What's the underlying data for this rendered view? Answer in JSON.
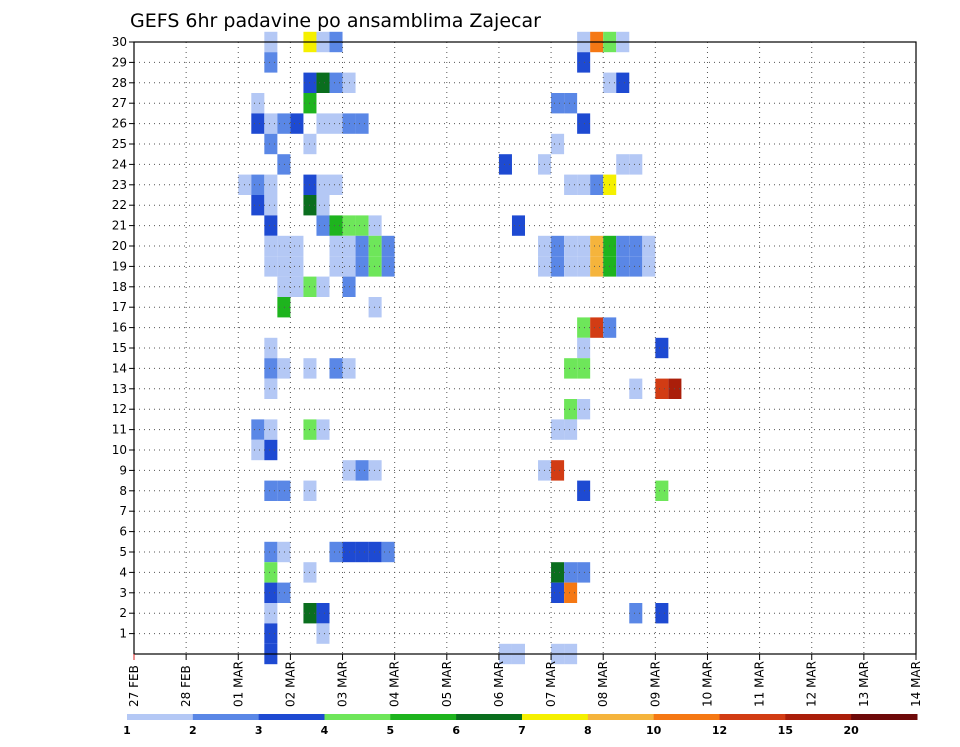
{
  "chart_data": {
    "type": "heatmap",
    "title": "GEFS 6hr padavine po ansamblima Zajecar",
    "xlabel": "",
    "ylabel": "",
    "x_unit": "days from 27 FEB 00Z",
    "xlim": [
      0,
      15
    ],
    "ylim": [
      0,
      30
    ],
    "y_ticks": [
      "1",
      "2",
      "3",
      "4",
      "5",
      "6",
      "7",
      "8",
      "9",
      "10",
      "11",
      "12",
      "13",
      "14",
      "15",
      "16",
      "17",
      "18",
      "19",
      "20",
      "21",
      "22",
      "23",
      "24",
      "25",
      "26",
      "27",
      "28",
      "29",
      "30"
    ],
    "x_ticks": [
      "27 FEB",
      "28 FEB",
      "01 MAR",
      "02 MAR",
      "03 MAR",
      "04 MAR",
      "05 MAR",
      "06 MAR",
      "07 MAR",
      "08 MAR",
      "09 MAR",
      "10 MAR",
      "11 MAR",
      "12 MAR",
      "13 MAR",
      "14 MAR"
    ],
    "legend": {
      "labels": [
        "1",
        "2",
        "3",
        "4",
        "5",
        "6",
        "7",
        "8",
        "10",
        "12",
        "15",
        "20"
      ],
      "colors": [
        "#b4c8f5",
        "#5a87e6",
        "#1e4ad2",
        "#6ee65a",
        "#1eb41e",
        "#0a6e1e",
        "#f5f000",
        "#f5b43c",
        "#f57814",
        "#d23c14",
        "#aa1e0a",
        "#6e0a0a"
      ]
    },
    "series": [
      {
        "member": 30,
        "cells": [
          [
            2,
            0
          ],
          [
            5,
            6
          ],
          [
            6,
            0
          ],
          [
            7,
            1
          ],
          [
            26,
            0
          ],
          [
            27,
            8
          ],
          [
            28,
            3
          ],
          [
            29,
            0
          ]
        ]
      },
      {
        "member": 29,
        "cells": [
          [
            2,
            1
          ],
          [
            26,
            2
          ]
        ]
      },
      {
        "member": 28,
        "cells": [
          [
            5,
            2
          ],
          [
            6,
            5
          ],
          [
            7,
            1
          ],
          [
            8,
            0
          ],
          [
            28,
            0
          ],
          [
            29,
            2
          ]
        ]
      },
      {
        "member": 27,
        "cells": [
          [
            1,
            0
          ],
          [
            5,
            4
          ],
          [
            24,
            1
          ],
          [
            25,
            1
          ]
        ]
      },
      {
        "member": 26,
        "cells": [
          [
            1,
            2
          ],
          [
            2,
            0
          ],
          [
            3,
            1
          ],
          [
            4,
            2
          ],
          [
            6,
            0
          ],
          [
            7,
            0
          ],
          [
            8,
            1
          ],
          [
            9,
            1
          ],
          [
            26,
            2
          ]
        ]
      },
      {
        "member": 25,
        "cells": [
          [
            2,
            1
          ],
          [
            5,
            0
          ],
          [
            24,
            0
          ]
        ]
      },
      {
        "member": 24,
        "cells": [
          [
            3,
            1
          ],
          [
            20,
            2
          ],
          [
            23,
            0
          ],
          [
            29,
            0
          ],
          [
            30,
            0
          ]
        ]
      },
      {
        "member": 23,
        "cells": [
          [
            0,
            0
          ],
          [
            1,
            1
          ],
          [
            2,
            0
          ],
          [
            5,
            2
          ],
          [
            6,
            0
          ],
          [
            7,
            0
          ],
          [
            25,
            0
          ],
          [
            26,
            0
          ],
          [
            27,
            1
          ],
          [
            28,
            6
          ]
        ]
      },
      {
        "member": 22,
        "cells": [
          [
            1,
            2
          ],
          [
            2,
            0
          ],
          [
            5,
            5
          ],
          [
            6,
            0
          ]
        ]
      },
      {
        "member": 21,
        "cells": [
          [
            2,
            2
          ],
          [
            6,
            1
          ],
          [
            7,
            4
          ],
          [
            8,
            3
          ],
          [
            9,
            3
          ],
          [
            10,
            0
          ],
          [
            21,
            2
          ]
        ]
      },
      {
        "member": 20,
        "cells": [
          [
            2,
            0
          ],
          [
            3,
            0
          ],
          [
            4,
            0
          ],
          [
            7,
            0
          ],
          [
            8,
            0
          ],
          [
            9,
            1
          ],
          [
            10,
            3
          ],
          [
            11,
            1
          ],
          [
            23,
            0
          ],
          [
            24,
            1
          ],
          [
            25,
            0
          ],
          [
            26,
            0
          ],
          [
            27,
            7
          ],
          [
            28,
            4
          ],
          [
            29,
            1
          ],
          [
            30,
            1
          ],
          [
            31,
            0
          ]
        ]
      },
      {
        "member": 19,
        "cells": [
          [
            2,
            0
          ],
          [
            3,
            0
          ],
          [
            4,
            0
          ],
          [
            7,
            0
          ],
          [
            8,
            0
          ],
          [
            9,
            1
          ],
          [
            10,
            3
          ],
          [
            11,
            1
          ],
          [
            23,
            0
          ],
          [
            24,
            1
          ],
          [
            25,
            0
          ],
          [
            26,
            0
          ],
          [
            27,
            7
          ],
          [
            28,
            4
          ],
          [
            29,
            1
          ],
          [
            30,
            1
          ],
          [
            31,
            0
          ]
        ]
      },
      {
        "member": 18,
        "cells": [
          [
            3,
            0
          ],
          [
            4,
            0
          ],
          [
            5,
            3
          ],
          [
            6,
            0
          ],
          [
            8,
            1
          ]
        ]
      },
      {
        "member": 17,
        "cells": [
          [
            3,
            4
          ],
          [
            10,
            0
          ]
        ]
      },
      {
        "member": 16,
        "cells": [
          [
            26,
            3
          ],
          [
            27,
            9
          ],
          [
            28,
            1
          ]
        ]
      },
      {
        "member": 15,
        "cells": [
          [
            2,
            0
          ],
          [
            26,
            0
          ],
          [
            32,
            2
          ]
        ]
      },
      {
        "member": 14,
        "cells": [
          [
            2,
            1
          ],
          [
            3,
            0
          ],
          [
            5,
            0
          ],
          [
            7,
            1
          ],
          [
            8,
            0
          ],
          [
            25,
            3
          ],
          [
            26,
            3
          ]
        ]
      },
      {
        "member": 13,
        "cells": [
          [
            2,
            0
          ],
          [
            30,
            0
          ],
          [
            32,
            9
          ],
          [
            33,
            10
          ]
        ]
      },
      {
        "member": 12,
        "cells": [
          [
            25,
            3
          ],
          [
            26,
            0
          ]
        ]
      },
      {
        "member": 11,
        "cells": [
          [
            1,
            1
          ],
          [
            2,
            0
          ],
          [
            5,
            3
          ],
          [
            6,
            0
          ],
          [
            24,
            0
          ],
          [
            25,
            0
          ]
        ]
      },
      {
        "member": 10,
        "cells": [
          [
            1,
            0
          ],
          [
            2,
            2
          ]
        ]
      },
      {
        "member": 9,
        "cells": [
          [
            8,
            0
          ],
          [
            9,
            1
          ],
          [
            10,
            0
          ],
          [
            23,
            0
          ],
          [
            24,
            9
          ]
        ]
      },
      {
        "member": 8,
        "cells": [
          [
            2,
            1
          ],
          [
            3,
            1
          ],
          [
            5,
            0
          ],
          [
            26,
            2
          ],
          [
            32,
            3
          ]
        ]
      },
      {
        "member": 5,
        "cells": [
          [
            2,
            1
          ],
          [
            3,
            0
          ],
          [
            7,
            1
          ],
          [
            8,
            2
          ],
          [
            9,
            2
          ],
          [
            10,
            2
          ],
          [
            11,
            1
          ]
        ]
      },
      {
        "member": 4,
        "cells": [
          [
            2,
            3
          ],
          [
            5,
            0
          ],
          [
            24,
            5
          ],
          [
            25,
            1
          ],
          [
            26,
            1
          ]
        ]
      },
      {
        "member": 3,
        "cells": [
          [
            2,
            2
          ],
          [
            3,
            1
          ],
          [
            24,
            2
          ],
          [
            25,
            8
          ]
        ]
      },
      {
        "member": 2,
        "cells": [
          [
            2,
            0
          ],
          [
            5,
            5
          ],
          [
            6,
            2
          ],
          [
            30,
            1
          ],
          [
            32,
            2
          ]
        ]
      },
      {
        "member": 1,
        "cells": [
          [
            2,
            2
          ],
          [
            6,
            0
          ]
        ]
      },
      {
        "member": 0,
        "cells": [
          [
            2,
            2
          ],
          [
            20,
            0
          ],
          [
            21,
            0
          ],
          [
            24,
            0
          ],
          [
            25,
            0
          ]
        ]
      }
    ],
    "notes": "Each cell = [6-hour step index since 01 MAR 00Z, legend color index]; member 0 row is the strip below member 1."
  }
}
